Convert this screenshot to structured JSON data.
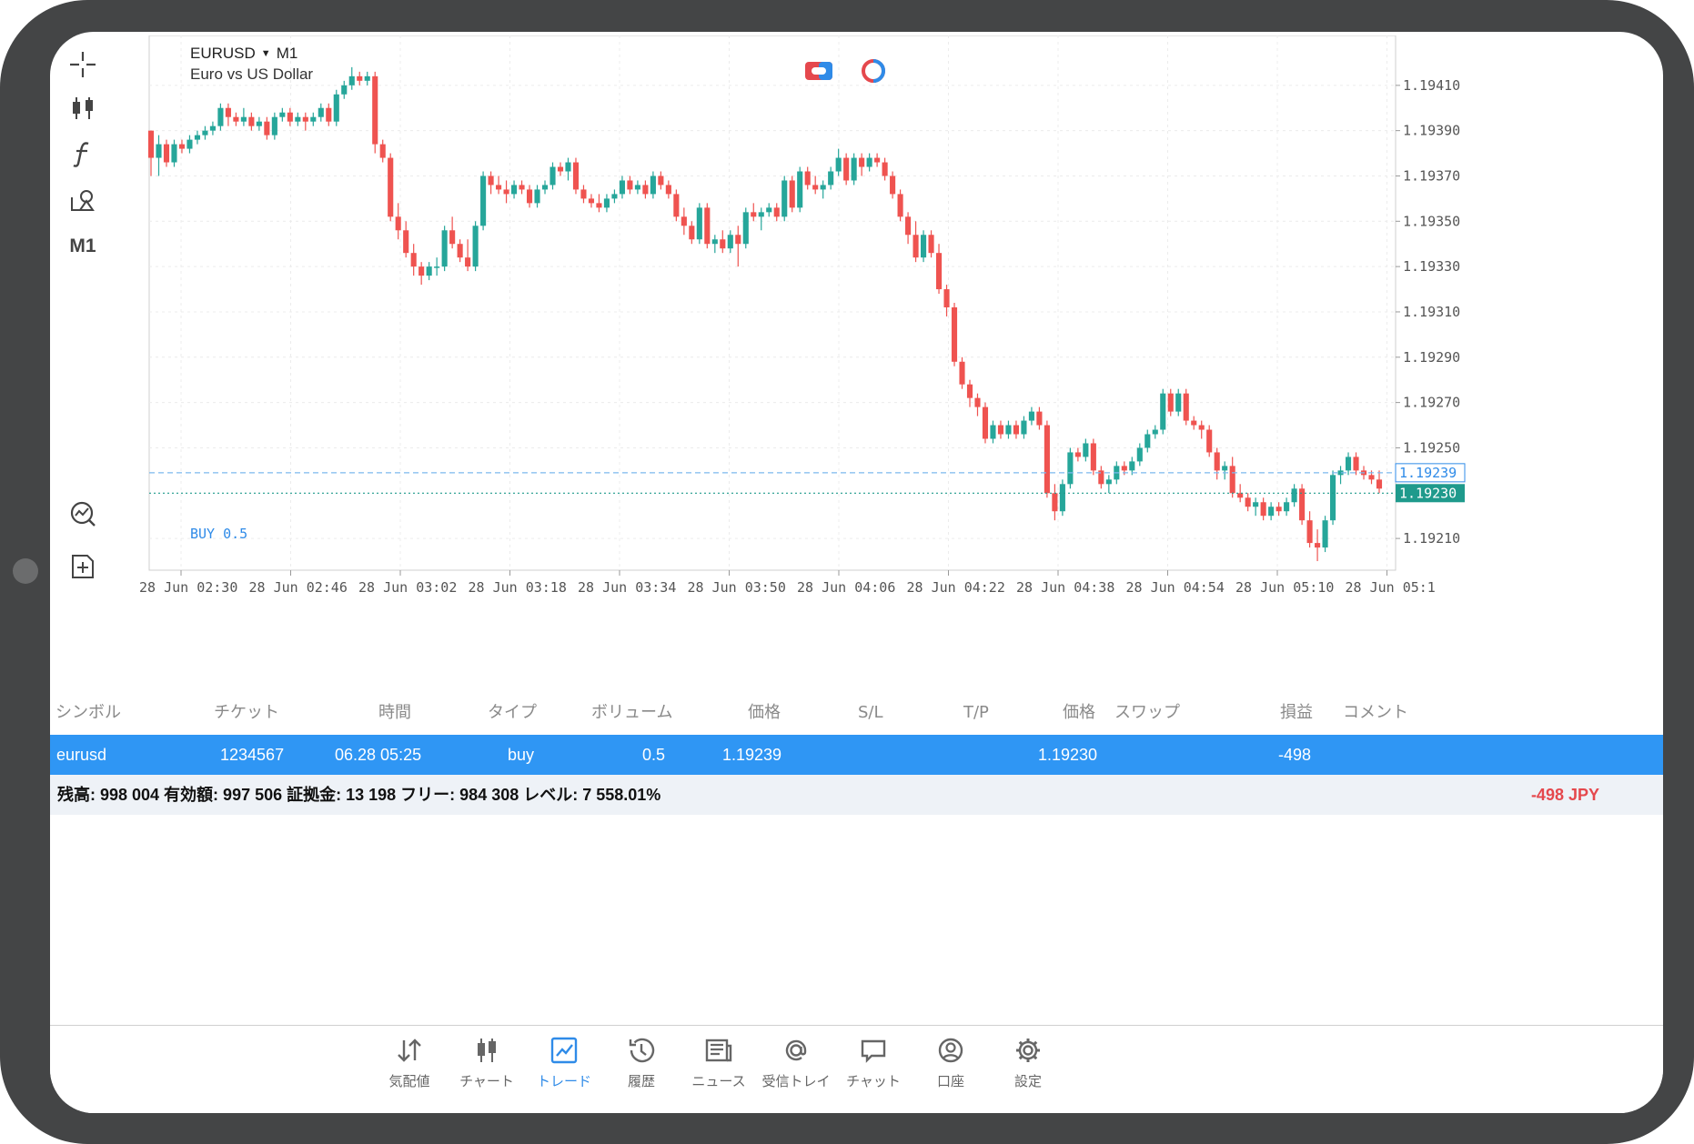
{
  "chart": {
    "symbol": "EURUSD",
    "timeframe": "M1",
    "description": "Euro vs US Dollar",
    "buy_label": "BUY 0.5",
    "toolbar_timeframe": "M1"
  },
  "colors": {
    "bull": "#26a69a",
    "bear": "#ef5350",
    "accent": "#2f8be8",
    "row_selected": "#2f96f4",
    "negative": "#e5484d"
  },
  "chart_data": {
    "type": "candlestick",
    "title": "EURUSD",
    "subtitle": "Euro vs US Dollar",
    "y_ticks": [
      "1.19410",
      "1.19390",
      "1.19370",
      "1.19350",
      "1.19330",
      "1.19310",
      "1.19290",
      "1.19270",
      "1.19250",
      "1.19210"
    ],
    "x_ticks": [
      "28 Jun 02:30",
      "28 Jun 02:46",
      "28 Jun 03:02",
      "28 Jun 03:18",
      "28 Jun 03:34",
      "28 Jun 03:50",
      "28 Jun 04:06",
      "28 Jun 04:22",
      "28 Jun 04:38",
      "28 Jun 04:54",
      "28 Jun 05:10",
      "28 Jun 05:1"
    ],
    "ylim": [
      1.19196,
      1.19432
    ],
    "grid": true,
    "lines": [
      {
        "name": "BUY 0.5",
        "value": 1.19239,
        "label": "1.19239",
        "style": "dashed",
        "color": "#7cb9ee"
      },
      {
        "name": "bid",
        "value": 1.1923,
        "label": "1.19230",
        "style": "dotted",
        "color": "#1f9a8c"
      }
    ],
    "candles": [
      [
        1.1939,
        1.1939,
        1.1937,
        1.19378
      ],
      [
        1.19378,
        1.19388,
        1.1937,
        1.19384
      ],
      [
        1.19384,
        1.19386,
        1.19374,
        1.19376
      ],
      [
        1.19376,
        1.19386,
        1.19374,
        1.19384
      ],
      [
        1.19384,
        1.19386,
        1.1938,
        1.19382
      ],
      [
        1.19382,
        1.19388,
        1.1938,
        1.19386
      ],
      [
        1.19386,
        1.1939,
        1.19384,
        1.19388
      ],
      [
        1.19388,
        1.19392,
        1.19386,
        1.1939
      ],
      [
        1.1939,
        1.19394,
        1.19388,
        1.19392
      ],
      [
        1.19392,
        1.19402,
        1.1939,
        1.194
      ],
      [
        1.194,
        1.19402,
        1.19392,
        1.19396
      ],
      [
        1.19396,
        1.19398,
        1.19392,
        1.19394
      ],
      [
        1.19394,
        1.194,
        1.19392,
        1.19396
      ],
      [
        1.19396,
        1.19398,
        1.1939,
        1.19392
      ],
      [
        1.19392,
        1.19396,
        1.1939,
        1.19394
      ],
      [
        1.19394,
        1.19396,
        1.19386,
        1.19388
      ],
      [
        1.19388,
        1.19398,
        1.19386,
        1.19396
      ],
      [
        1.19396,
        1.194,
        1.19394,
        1.19398
      ],
      [
        1.19398,
        1.194,
        1.19392,
        1.19394
      ],
      [
        1.19394,
        1.19398,
        1.19392,
        1.19396
      ],
      [
        1.19396,
        1.19398,
        1.1939,
        1.19394
      ],
      [
        1.19394,
        1.19398,
        1.19392,
        1.19396
      ],
      [
        1.19396,
        1.19402,
        1.19394,
        1.194
      ],
      [
        1.194,
        1.19402,
        1.19392,
        1.19394
      ],
      [
        1.19394,
        1.19408,
        1.19392,
        1.19406
      ],
      [
        1.19406,
        1.19412,
        1.19404,
        1.1941
      ],
      [
        1.1941,
        1.19418,
        1.19408,
        1.19414
      ],
      [
        1.19414,
        1.19416,
        1.1941,
        1.19412
      ],
      [
        1.19412,
        1.19416,
        1.1941,
        1.19414
      ],
      [
        1.19414,
        1.19416,
        1.1938,
        1.19384
      ],
      [
        1.19384,
        1.19386,
        1.19376,
        1.19378
      ],
      [
        1.19378,
        1.1938,
        1.1935,
        1.19352
      ],
      [
        1.19352,
        1.19358,
        1.19342,
        1.19346
      ],
      [
        1.19346,
        1.1935,
        1.19334,
        1.19336
      ],
      [
        1.19336,
        1.1934,
        1.19326,
        1.1933
      ],
      [
        1.1933,
        1.19332,
        1.19322,
        1.19326
      ],
      [
        1.19326,
        1.19332,
        1.19324,
        1.1933
      ],
      [
        1.1933,
        1.19334,
        1.19326,
        1.1933
      ],
      [
        1.1933,
        1.19348,
        1.19328,
        1.19346
      ],
      [
        1.19346,
        1.19352,
        1.19338,
        1.1934
      ],
      [
        1.1934,
        1.19342,
        1.19332,
        1.19334
      ],
      [
        1.19334,
        1.19342,
        1.19328,
        1.1933
      ],
      [
        1.1933,
        1.1935,
        1.19328,
        1.19348
      ],
      [
        1.19348,
        1.19372,
        1.19346,
        1.1937
      ],
      [
        1.1937,
        1.19372,
        1.19362,
        1.19366
      ],
      [
        1.19366,
        1.1937,
        1.19362,
        1.19364
      ],
      [
        1.19364,
        1.19368,
        1.19358,
        1.19362
      ],
      [
        1.19362,
        1.19368,
        1.1936,
        1.19366
      ],
      [
        1.19366,
        1.19368,
        1.19362,
        1.19364
      ],
      [
        1.19364,
        1.19366,
        1.19356,
        1.19358
      ],
      [
        1.19358,
        1.19366,
        1.19356,
        1.19364
      ],
      [
        1.19364,
        1.19368,
        1.19362,
        1.19366
      ],
      [
        1.19366,
        1.19376,
        1.19364,
        1.19374
      ],
      [
        1.19374,
        1.19376,
        1.1937,
        1.19372
      ],
      [
        1.19372,
        1.19378,
        1.19368,
        1.19376
      ],
      [
        1.19376,
        1.19378,
        1.19362,
        1.19364
      ],
      [
        1.19364,
        1.19366,
        1.19358,
        1.1936
      ],
      [
        1.1936,
        1.19362,
        1.19356,
        1.19358
      ],
      [
        1.19358,
        1.19362,
        1.19354,
        1.19356
      ],
      [
        1.19356,
        1.19362,
        1.19354,
        1.1936
      ],
      [
        1.1936,
        1.19364,
        1.19358,
        1.19362
      ],
      [
        1.19362,
        1.1937,
        1.1936,
        1.19368
      ],
      [
        1.19368,
        1.1937,
        1.19362,
        1.19364
      ],
      [
        1.19364,
        1.19368,
        1.19362,
        1.19366
      ],
      [
        1.19366,
        1.19368,
        1.1936,
        1.19362
      ],
      [
        1.19362,
        1.19372,
        1.1936,
        1.1937
      ],
      [
        1.1937,
        1.19372,
        1.19364,
        1.19366
      ],
      [
        1.19366,
        1.19368,
        1.1936,
        1.19362
      ],
      [
        1.19362,
        1.19364,
        1.1935,
        1.19352
      ],
      [
        1.19352,
        1.19356,
        1.19344,
        1.19348
      ],
      [
        1.19348,
        1.1935,
        1.1934,
        1.19342
      ],
      [
        1.19342,
        1.19358,
        1.1934,
        1.19356
      ],
      [
        1.19356,
        1.19358,
        1.19338,
        1.1934
      ],
      [
        1.1934,
        1.19344,
        1.19336,
        1.19342
      ],
      [
        1.19342,
        1.19346,
        1.19336,
        1.19338
      ],
      [
        1.19338,
        1.19346,
        1.19336,
        1.19344
      ],
      [
        1.19344,
        1.19348,
        1.1933,
        1.1934
      ],
      [
        1.1934,
        1.19356,
        1.19338,
        1.19354
      ],
      [
        1.19354,
        1.19358,
        1.1935,
        1.19352
      ],
      [
        1.19352,
        1.19356,
        1.19346,
        1.19354
      ],
      [
        1.19354,
        1.19358,
        1.19352,
        1.19356
      ],
      [
        1.19356,
        1.19358,
        1.1935,
        1.19352
      ],
      [
        1.19352,
        1.1937,
        1.1935,
        1.19368
      ],
      [
        1.19368,
        1.1937,
        1.19354,
        1.19356
      ],
      [
        1.19356,
        1.19374,
        1.19354,
        1.19372
      ],
      [
        1.19372,
        1.19374,
        1.19364,
        1.19366
      ],
      [
        1.19366,
        1.1937,
        1.19362,
        1.19364
      ],
      [
        1.19364,
        1.19368,
        1.1936,
        1.19366
      ],
      [
        1.19366,
        1.19374,
        1.19364,
        1.19372
      ],
      [
        1.19372,
        1.19382,
        1.1937,
        1.19378
      ],
      [
        1.19378,
        1.1938,
        1.19366,
        1.19368
      ],
      [
        1.19368,
        1.1938,
        1.19366,
        1.19378
      ],
      [
        1.19378,
        1.1938,
        1.1937,
        1.19374
      ],
      [
        1.19374,
        1.1938,
        1.19372,
        1.19378
      ],
      [
        1.19378,
        1.1938,
        1.19374,
        1.19376
      ],
      [
        1.19376,
        1.19378,
        1.19368,
        1.1937
      ],
      [
        1.1937,
        1.19372,
        1.1936,
        1.19362
      ],
      [
        1.19362,
        1.19364,
        1.1935,
        1.19352
      ],
      [
        1.19352,
        1.19354,
        1.1934,
        1.19344
      ],
      [
        1.19344,
        1.1935,
        1.19332,
        1.19334
      ],
      [
        1.19334,
        1.19346,
        1.19332,
        1.19344
      ],
      [
        1.19344,
        1.19346,
        1.19334,
        1.19336
      ],
      [
        1.19336,
        1.1934,
        1.19318,
        1.1932
      ],
      [
        1.1932,
        1.19322,
        1.19308,
        1.19312
      ],
      [
        1.19312,
        1.19314,
        1.19286,
        1.19288
      ],
      [
        1.19288,
        1.1929,
        1.19276,
        1.19278
      ],
      [
        1.19278,
        1.1928,
        1.19268,
        1.19272
      ],
      [
        1.19272,
        1.19274,
        1.19264,
        1.19268
      ],
      [
        1.19268,
        1.1927,
        1.19252,
        1.19254
      ],
      [
        1.19254,
        1.19262,
        1.19252,
        1.1926
      ],
      [
        1.1926,
        1.19262,
        1.19254,
        1.19256
      ],
      [
        1.19256,
        1.19262,
        1.19254,
        1.1926
      ],
      [
        1.1926,
        1.19262,
        1.19254,
        1.19256
      ],
      [
        1.19256,
        1.19264,
        1.19254,
        1.19262
      ],
      [
        1.19262,
        1.19268,
        1.1926,
        1.19266
      ],
      [
        1.19266,
        1.19268,
        1.19258,
        1.1926
      ],
      [
        1.1926,
        1.19262,
        1.19228,
        1.1923
      ],
      [
        1.1923,
        1.19234,
        1.19218,
        1.19222
      ],
      [
        1.19222,
        1.19236,
        1.1922,
        1.19234
      ],
      [
        1.19234,
        1.1925,
        1.19232,
        1.19248
      ],
      [
        1.19248,
        1.1925,
        1.19244,
        1.19246
      ],
      [
        1.19246,
        1.19254,
        1.19244,
        1.19252
      ],
      [
        1.19252,
        1.19254,
        1.19238,
        1.1924
      ],
      [
        1.1924,
        1.19242,
        1.19232,
        1.19234
      ],
      [
        1.19234,
        1.19238,
        1.1923,
        1.19236
      ],
      [
        1.19236,
        1.19244,
        1.19234,
        1.19242
      ],
      [
        1.19242,
        1.19244,
        1.19238,
        1.1924
      ],
      [
        1.1924,
        1.19246,
        1.19238,
        1.19244
      ],
      [
        1.19244,
        1.19252,
        1.19242,
        1.1925
      ],
      [
        1.1925,
        1.19258,
        1.19248,
        1.19256
      ],
      [
        1.19256,
        1.1926,
        1.19254,
        1.19258
      ],
      [
        1.19258,
        1.19276,
        1.19256,
        1.19274
      ],
      [
        1.19274,
        1.19276,
        1.19264,
        1.19266
      ],
      [
        1.19266,
        1.19276,
        1.19264,
        1.19274
      ],
      [
        1.19274,
        1.19276,
        1.1926,
        1.19262
      ],
      [
        1.19262,
        1.19264,
        1.19258,
        1.1926
      ],
      [
        1.1926,
        1.19262,
        1.19254,
        1.19258
      ],
      [
        1.19258,
        1.1926,
        1.19246,
        1.19248
      ],
      [
        1.19248,
        1.1925,
        1.19236,
        1.1924
      ],
      [
        1.1924,
        1.19244,
        1.19236,
        1.19242
      ],
      [
        1.19242,
        1.19246,
        1.19228,
        1.1923
      ],
      [
        1.1923,
        1.19234,
        1.19226,
        1.19228
      ],
      [
        1.19228,
        1.1923,
        1.19222,
        1.19224
      ],
      [
        1.19224,
        1.19228,
        1.1922,
        1.19226
      ],
      [
        1.19226,
        1.19228,
        1.19218,
        1.1922
      ],
      [
        1.1922,
        1.19226,
        1.19218,
        1.19224
      ],
      [
        1.19224,
        1.19226,
        1.1922,
        1.19222
      ],
      [
        1.19222,
        1.19228,
        1.1922,
        1.19226
      ],
      [
        1.19226,
        1.19234,
        1.19224,
        1.19232
      ],
      [
        1.19232,
        1.19234,
        1.19216,
        1.19218
      ],
      [
        1.19218,
        1.19222,
        1.19206,
        1.19208
      ],
      [
        1.19208,
        1.19214,
        1.192,
        1.19206
      ],
      [
        1.19206,
        1.1922,
        1.19204,
        1.19218
      ],
      [
        1.19218,
        1.1924,
        1.19216,
        1.19238
      ],
      [
        1.19238,
        1.19242,
        1.19234,
        1.1924
      ],
      [
        1.1924,
        1.19248,
        1.19238,
        1.19246
      ],
      [
        1.19246,
        1.19248,
        1.19238,
        1.1924
      ],
      [
        1.1924,
        1.19242,
        1.19236,
        1.19238
      ],
      [
        1.19238,
        1.1924,
        1.19234,
        1.19236
      ],
      [
        1.19236,
        1.1924,
        1.1923,
        1.19232
      ]
    ]
  },
  "table": {
    "headers": {
      "symbol": "シンボル",
      "ticket": "チケット",
      "time": "時間",
      "type": "タイプ",
      "volume": "ボリューム",
      "price": "価格",
      "sl": "S/L",
      "tp": "T/P",
      "price2": "価格",
      "swap": "スワップ",
      "profit": "損益",
      "comment": "コメント"
    },
    "row": {
      "symbol": "eurusd",
      "ticket": "1234567",
      "time": "06.28 05:25",
      "type": "buy",
      "volume": "0.5",
      "price": "1.19239",
      "sl": "",
      "tp": "",
      "price2": "1.19230",
      "swap": "",
      "profit": "-498",
      "comment": ""
    },
    "summary": "残高: 998 004 有効額: 997 506 証拠金: 13 198 フリー: 984 308 レベル: 7 558.01%",
    "summary_profit": "-498  JPY"
  },
  "nav": {
    "items": [
      {
        "id": "quotes",
        "label": "気配値",
        "icon": "arrows-updown-icon"
      },
      {
        "id": "chart",
        "label": "チャート",
        "icon": "candles-icon"
      },
      {
        "id": "trade",
        "label": "トレード",
        "icon": "trade-chart-icon",
        "active": true
      },
      {
        "id": "history",
        "label": "履歴",
        "icon": "history-icon"
      },
      {
        "id": "news",
        "label": "ニュース",
        "icon": "news-icon"
      },
      {
        "id": "mail",
        "label": "受信トレイ",
        "icon": "at-icon"
      },
      {
        "id": "chat",
        "label": "チャット",
        "icon": "chat-icon"
      },
      {
        "id": "account",
        "label": "口座",
        "icon": "account-icon"
      },
      {
        "id": "settings",
        "label": "設定",
        "icon": "gear-icon"
      }
    ]
  }
}
